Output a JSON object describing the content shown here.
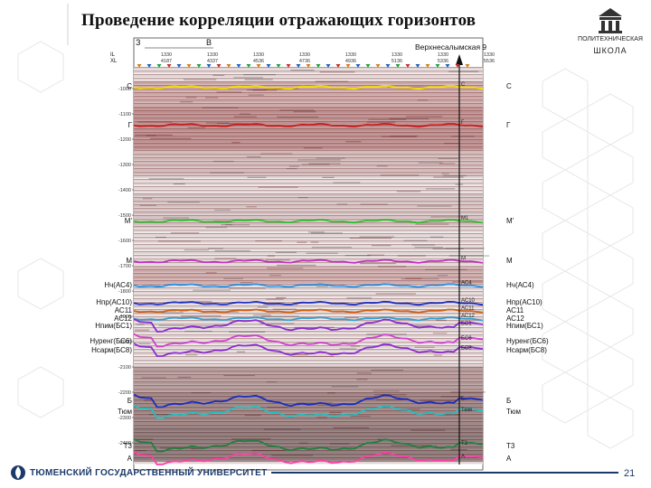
{
  "title": "Проведение корреляции отражающих горизонтов",
  "logo": {
    "line1": "ПОЛИТЕХНИЧЕСКАЯ",
    "line2": "ШКОЛА",
    "icon": "building-columns-icon"
  },
  "section": {
    "direction_left": "З",
    "direction_right": "В",
    "well_name": "Верхнесалымская 9",
    "row_il": "IL",
    "row_xl": "XL",
    "trace_headers": [
      {
        "il": "1330",
        "xl": "4187"
      },
      {
        "il": "1330",
        "xl": "4337"
      },
      {
        "il": "1330",
        "xl": "4536"
      },
      {
        "il": "1330",
        "xl": "4736"
      },
      {
        "il": "1330",
        "xl": "4936"
      },
      {
        "il": "1330",
        "xl": "5136"
      },
      {
        "il": "1330",
        "xl": "5336"
      },
      {
        "il": "1330",
        "xl": "5536"
      }
    ],
    "time_ticks": [
      "-1000",
      "-1100",
      "-1200",
      "-1300",
      "-1400",
      "-1500",
      "-1600",
      "-1700",
      "-1800",
      "-1900",
      "-2000",
      "-2100",
      "-2200",
      "-2300",
      "-2400"
    ]
  },
  "horizons": [
    {
      "left": "С",
      "right": "С",
      "well": "С",
      "color": "#f0e000",
      "y": 0.114
    },
    {
      "left": "Г",
      "right": "Г",
      "well": "Г",
      "color": "#c81e1e",
      "y": 0.202
    },
    {
      "left": "М'",
      "right": "М'",
      "well": "М1",
      "color": "#2fc02f",
      "y": 0.424
    },
    {
      "left": "М",
      "right": "М",
      "well": "М",
      "color": "#c02fc0",
      "y": 0.517
    },
    {
      "left": "Нч(АС4)",
      "right": "Нч(АС4)",
      "well": "АС4",
      "color": "#2e8fe0",
      "y": 0.573
    },
    {
      "left": "Нпр(АС10)",
      "right": "Нпр(АС10)",
      "well": "АС10",
      "color": "#1a2bbf",
      "y": 0.614
    },
    {
      "left": "АС11",
      "right": "АС11",
      "well": "АС11",
      "color": "#d06010",
      "y": 0.632
    },
    {
      "left": "АС12",
      "right": "АС12",
      "well": "АС12",
      "color": "#30a0d0",
      "y": 0.65
    },
    {
      "left": "Нпим(БС1)",
      "right": "Нпим(БС1)",
      "well": "БС1",
      "color": "#8a2bd0",
      "y": 0.667
    },
    {
      "left": "Нуренг(БС6)",
      "right": "Нуренг(БС6)",
      "well": "БС6",
      "color": "#d040d0",
      "y": 0.702
    },
    {
      "left": "Нсарм(БС8)",
      "right": "Нсарм(БС8)",
      "well": "БС8",
      "color": "#8a2bd0",
      "y": 0.724
    },
    {
      "left": "Б",
      "right": "Б",
      "well": "Б",
      "color": "#1a2bbf",
      "y": 0.842
    },
    {
      "left": "Тюм",
      "right": "Тюм",
      "well": "Тюм",
      "color": "#20c0c0",
      "y": 0.867
    },
    {
      "left": "Т3",
      "right": "Т3",
      "well": "Т3",
      "color": "#208040",
      "y": 0.945
    },
    {
      "left": "А",
      "right": "А",
      "well": "А",
      "color": "#ff3da6",
      "y": 0.975
    }
  ],
  "footer": {
    "university": "ТЮМЕНСКИЙ ГОСУДАРСТВЕННЫЙ УНИВЕРСИТЕТ",
    "page": "21"
  }
}
